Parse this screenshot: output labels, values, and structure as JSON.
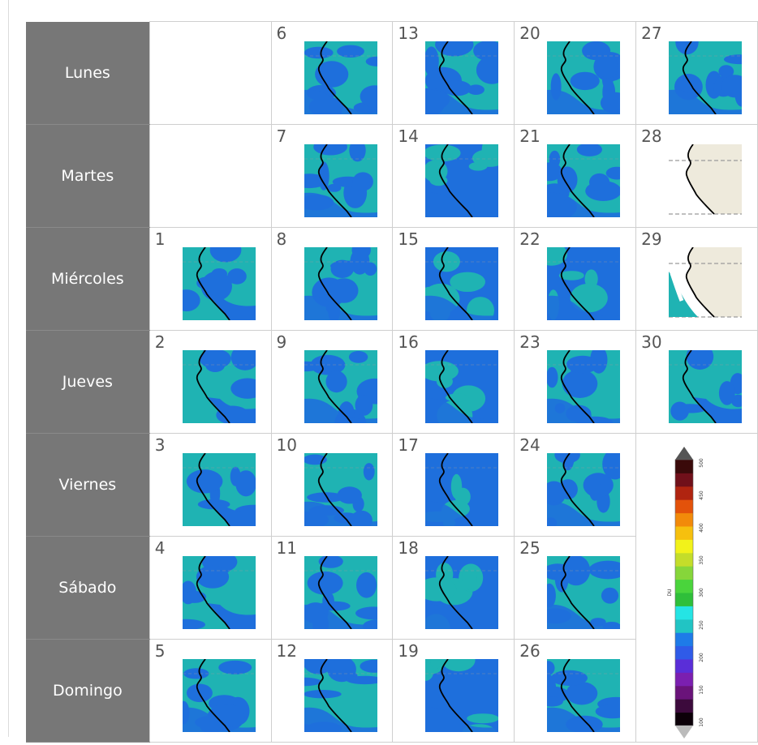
{
  "days": [
    "Lunes",
    "Martes",
    "Miércoles",
    "Jueves",
    "Viernes",
    "Sábado",
    "Domingo"
  ],
  "weeks": [
    [
      null,
      null,
      {
        "day": "1",
        "variant": "teal"
      },
      {
        "day": "2",
        "variant": "teal"
      },
      {
        "day": "3",
        "variant": "teal"
      },
      {
        "day": "4",
        "variant": "teal"
      },
      {
        "day": "5",
        "variant": "mixed"
      }
    ],
    [
      {
        "day": "6",
        "variant": "mixed"
      },
      {
        "day": "7",
        "variant": "mixed"
      },
      {
        "day": "8",
        "variant": "mixed"
      },
      {
        "day": "9",
        "variant": "mixed"
      },
      {
        "day": "10",
        "variant": "mixed"
      },
      {
        "day": "11",
        "variant": "mixed"
      },
      {
        "day": "12",
        "variant": "mixed"
      }
    ],
    [
      {
        "day": "13",
        "variant": "mixed"
      },
      {
        "day": "14",
        "variant": "blue"
      },
      {
        "day": "15",
        "variant": "blue"
      },
      {
        "day": "16",
        "variant": "blue"
      },
      {
        "day": "17",
        "variant": "blue"
      },
      {
        "day": "18",
        "variant": "blue"
      },
      {
        "day": "19",
        "variant": "blue"
      }
    ],
    [
      {
        "day": "20",
        "variant": "mixed"
      },
      {
        "day": "21",
        "variant": "mixed"
      },
      {
        "day": "22",
        "variant": "blue"
      },
      {
        "day": "23",
        "variant": "mixed"
      },
      {
        "day": "24",
        "variant": "mixed"
      },
      {
        "day": "25",
        "variant": "mixed"
      },
      {
        "day": "26",
        "variant": "mixed"
      }
    ],
    [
      {
        "day": "27",
        "variant": "mixed"
      },
      {
        "day": "28",
        "variant": "nodata"
      },
      {
        "day": "29",
        "variant": "nodata-partial"
      },
      {
        "day": "30",
        "variant": "teal"
      },
      "legend",
      "legend",
      "legend"
    ]
  ],
  "legend": {
    "unit": "DU",
    "tick_labels": [
      "100",
      "150",
      "200",
      "250",
      "300",
      "350",
      "400",
      "450",
      "500"
    ],
    "colors": [
      "#0c0008",
      "#3c0a3c",
      "#6a137a",
      "#7b1fb0",
      "#5a2ed8",
      "#2f5be8",
      "#1e7be8",
      "#21c4c4",
      "#25e4e4",
      "#2fbf3a",
      "#4ad43c",
      "#86d63a",
      "#c4dd2a",
      "#f2f21a",
      "#f6c00e",
      "#f28a0a",
      "#e3520a",
      "#b02410",
      "#70101a",
      "#3a0a0a"
    ]
  },
  "map_colors": {
    "teal": "#1fb3b3",
    "blue": "#1e6fdc",
    "coast": "#000000",
    "nodata": "#eeeadc",
    "grid": "#9a9a9a"
  }
}
